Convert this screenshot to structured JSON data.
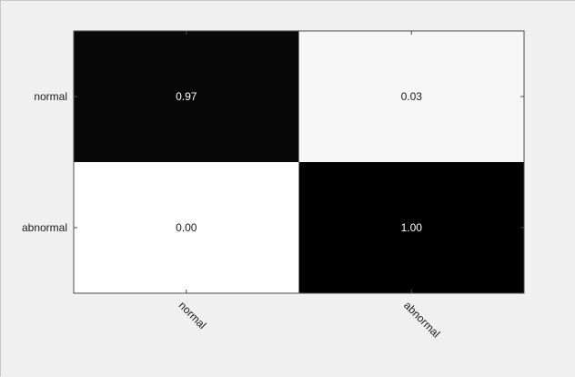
{
  "chart_data": {
    "type": "heatmap",
    "title": "",
    "xlabel": "",
    "ylabel": "",
    "x_categories": [
      "normal",
      "abnormal"
    ],
    "y_categories": [
      "normal",
      "abnormal"
    ],
    "values": [
      [
        0.97,
        0.03
      ],
      [
        0.0,
        1.0
      ]
    ],
    "value_labels": [
      [
        "0.97",
        "0.03"
      ],
      [
        "0.00",
        "1.00"
      ]
    ],
    "colormap": "grayscale-inverted",
    "range": [
      0,
      1
    ],
    "grid": false,
    "colors": {
      "high": "#000000",
      "low": "#ffffff",
      "background": "#f0f0f0",
      "axis": "#4d4d4d"
    }
  }
}
